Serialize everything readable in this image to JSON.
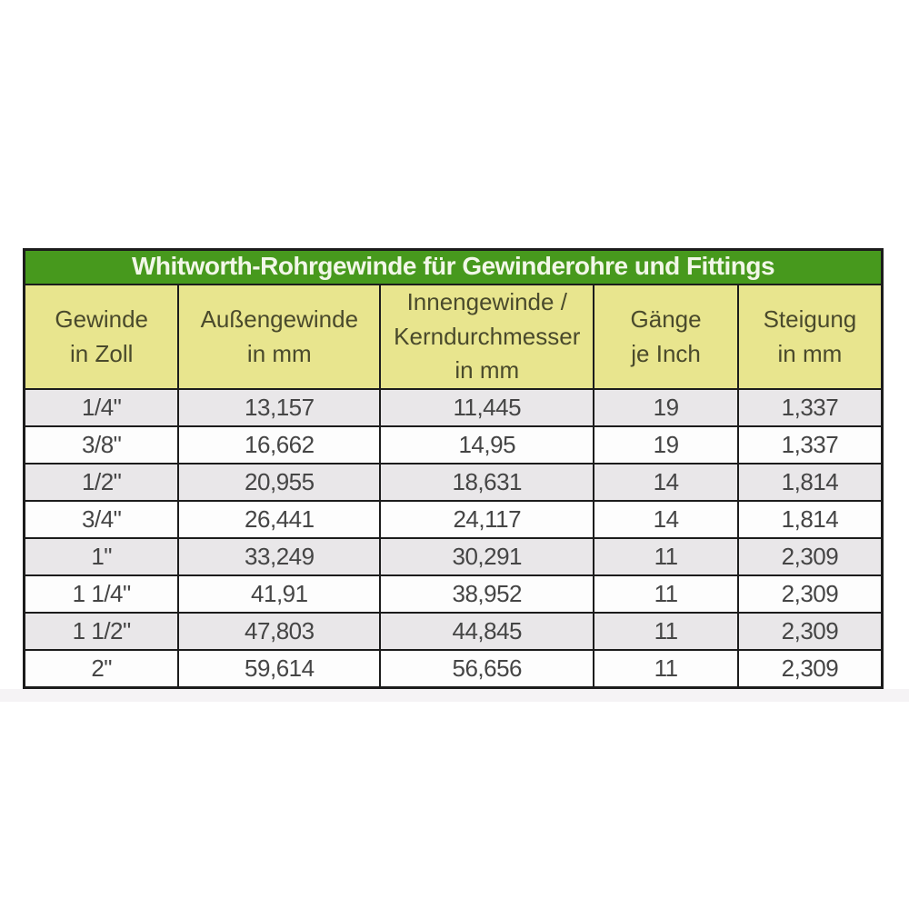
{
  "table": {
    "title": "Whitworth-Rohrgewinde für Gewinderohre und Fittings",
    "columns": [
      "Gewinde\nin Zoll",
      "Außengewinde\nin mm",
      "Innengewinde /\nKerndurchmesser\nin mm",
      "Gänge\nje Inch",
      "Steigung\nin mm"
    ],
    "col_widths_pct": [
      18.0,
      23.5,
      24.9,
      16.8,
      16.8
    ],
    "rows": [
      [
        "1/4\"",
        "13,157",
        "11,445",
        "19",
        "1,337"
      ],
      [
        "3/8\"",
        "16,662",
        "14,95",
        "19",
        "1,337"
      ],
      [
        "1/2\"",
        "20,955",
        "18,631",
        "14",
        "1,814"
      ],
      [
        "3/4\"",
        "26,441",
        "24,117",
        "14",
        "1,814"
      ],
      [
        "1\"",
        "33,249",
        "30,291",
        "11",
        "2,309"
      ],
      [
        "1 1/4\"",
        "41,91",
        "38,952",
        "11",
        "2,309"
      ],
      [
        "1 1/2\"",
        "47,803",
        "44,845",
        "11",
        "2,309"
      ],
      [
        "2\"",
        "59,614",
        "56,656",
        "11",
        "2,309"
      ]
    ],
    "colors": {
      "title_bg": "#47991d",
      "title_text": "#f2f7e8",
      "header_bg": "#e8e58e",
      "header_text": "#4a4a2c",
      "row_bg": "#fdfdfd",
      "row_alt_bg": "#e9e7e9",
      "border": "#1c1c1c",
      "data_text": "#454545",
      "shadow": "#f5f3f5"
    }
  },
  "chart_data": {
    "type": "table",
    "title": "Whitworth-Rohrgewinde für Gewinderohre und Fittings",
    "columns": [
      "Gewinde in Zoll",
      "Außengewinde in mm",
      "Innengewinde / Kerndurchmesser in mm",
      "Gänge je Inch",
      "Steigung in mm"
    ],
    "rows": [
      [
        "1/4\"",
        "13,157",
        "11,445",
        "19",
        "1,337"
      ],
      [
        "3/8\"",
        "16,662",
        "14,95",
        "19",
        "1,337"
      ],
      [
        "1/2\"",
        "20,955",
        "18,631",
        "14",
        "1,814"
      ],
      [
        "3/4\"",
        "26,441",
        "24,117",
        "14",
        "1,814"
      ],
      [
        "1\"",
        "33,249",
        "30,291",
        "11",
        "2,309"
      ],
      [
        "1 1/4\"",
        "41,91",
        "38,952",
        "11",
        "2,309"
      ],
      [
        "1 1/2\"",
        "47,803",
        "44,845",
        "11",
        "2,309"
      ],
      [
        "2\"",
        "59,614",
        "56,656",
        "11",
        "2,309"
      ]
    ],
    "notes": "Alternating row shading starting with shaded first row; green title band; yellow-green header band; decimal commas (German notation)"
  }
}
